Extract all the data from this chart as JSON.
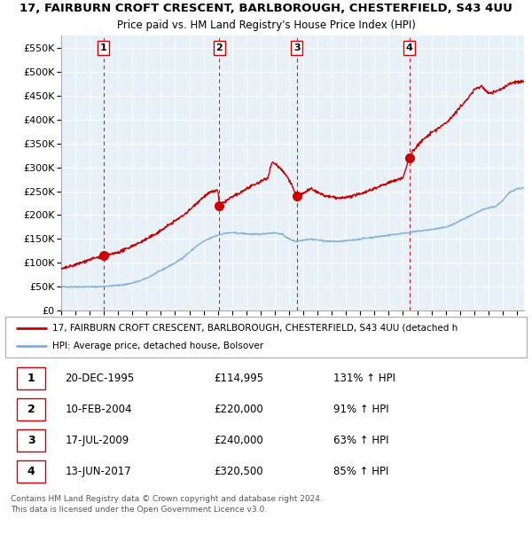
{
  "title": "17, FAIRBURN CROFT CRESCENT, BARLBOROUGH, CHESTERFIELD, S43 4UU",
  "subtitle": "Price paid vs. HM Land Registry's House Price Index (HPI)",
  "ylim": [
    0,
    575000
  ],
  "yticks": [
    0,
    50000,
    100000,
    150000,
    200000,
    250000,
    300000,
    350000,
    400000,
    450000,
    500000,
    550000
  ],
  "ytick_labels": [
    "£0",
    "£50K",
    "£100K",
    "£150K",
    "£200K",
    "£250K",
    "£300K",
    "£350K",
    "£400K",
    "£450K",
    "£500K",
    "£550K"
  ],
  "xlim_start": 1993.0,
  "xlim_end": 2025.5,
  "transactions": [
    {
      "num": 1,
      "date": 1995.97,
      "price": 114995
    },
    {
      "num": 2,
      "date": 2004.11,
      "price": 220000
    },
    {
      "num": 3,
      "date": 2009.54,
      "price": 240000
    },
    {
      "num": 4,
      "date": 2017.45,
      "price": 320500
    }
  ],
  "legend_line1": "17, FAIRBURN CROFT CRESCENT, BARLBOROUGH, CHESTERFIELD, S43 4UU (detached h",
  "legend_line2": "HPI: Average price, detached house, Bolsover",
  "table_rows": [
    {
      "num": "1",
      "date": "20-DEC-1995",
      "price": "£114,995",
      "hpi": "131% ↑ HPI"
    },
    {
      "num": "2",
      "date": "10-FEB-2004",
      "price": "£220,000",
      "hpi": "91% ↑ HPI"
    },
    {
      "num": "3",
      "date": "17-JUL-2009",
      "price": "£240,000",
      "hpi": "63% ↑ HPI"
    },
    {
      "num": "4",
      "date": "13-JUN-2017",
      "price": "£320,500",
      "hpi": "85% ↑ HPI"
    }
  ],
  "footer": "Contains HM Land Registry data © Crown copyright and database right 2024.\nThis data is licensed under the Open Government Licence v3.0.",
  "hpi_color": "#7aacdc",
  "price_color": "#cc0000",
  "dot_color": "#cc0000",
  "vline_color": "#cc0000",
  "bg_color": "#e8f0f8",
  "grid_color": "#ffffff"
}
